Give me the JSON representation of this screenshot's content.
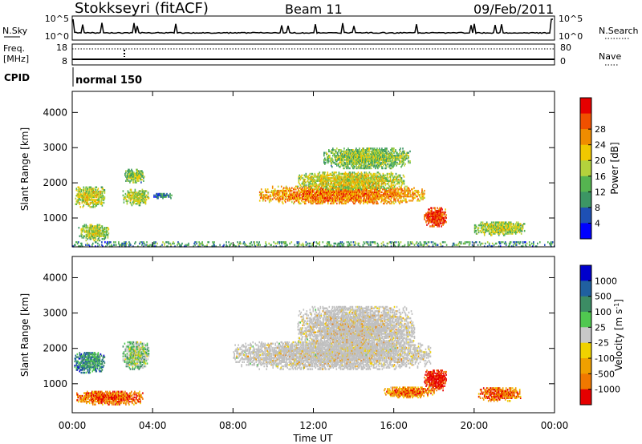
{
  "header": {
    "station": "Stokkseyri (fitACF)",
    "beam": "Beam 11",
    "date": "09/Feb/2011"
  },
  "summary": {
    "nsky_label": "N.Sky",
    "nsky_ticks": [
      "10^5",
      "10^0"
    ],
    "nsearch_label": "N.Search",
    "freq_label": "Freq.",
    "freq_unit": "[MHz]",
    "freq_ticks": [
      18,
      8
    ],
    "nave_label": "Nave",
    "nave_ticks": [
      80,
      0
    ],
    "cpid_label": "CPID",
    "cpid_value": "normal 150"
  },
  "colors": {
    "power": [
      "#0000ff",
      "#1e50b4",
      "#3c9664",
      "#55b450",
      "#b4d23c",
      "#f0c800",
      "#f08c00",
      "#f05000",
      "#e60000"
    ],
    "velocity": [
      "#0000cc",
      "#2060a0",
      "#3c8c64",
      "#50c850",
      "#c8c8c8",
      "#f0d200",
      "#f0a000",
      "#f07800",
      "#e60000"
    ],
    "ground_scatter": "#c0c0c0"
  },
  "chart_data": [
    {
      "type": "heatmap",
      "panel": "power",
      "x_ticks": [
        "00:00",
        "04:00",
        "08:00",
        "12:00",
        "16:00",
        "20:00",
        "00:00"
      ],
      "x_range_hours": [
        0,
        24
      ],
      "ylabel": "Slant Range [km]",
      "y_ticks": [
        1000,
        2000,
        3000,
        4000
      ],
      "y_range_km": [
        180,
        4600
      ],
      "colorbar_label": "Power [dB]",
      "colorbar_ticks": [
        "4",
        "8",
        "12",
        "16",
        "20",
        "24",
        "28"
      ],
      "regions": [
        {
          "t": [
            0.1,
            1.6
          ],
          "r": [
            1300,
            1900
          ],
          "level": 0.4
        },
        {
          "t": [
            0.3,
            1.8
          ],
          "r": [
            350,
            800
          ],
          "level": 0.35
        },
        {
          "t": [
            2.5,
            3.8
          ],
          "r": [
            1350,
            1800
          ],
          "level": 0.35
        },
        {
          "t": [
            2.6,
            3.6
          ],
          "r": [
            2000,
            2400
          ],
          "level": 0.3
        },
        {
          "t": [
            4.0,
            5.0
          ],
          "r": [
            1550,
            1700
          ],
          "level": 0.1
        },
        {
          "t": [
            9.3,
            17.5
          ],
          "r": [
            1400,
            1900
          ],
          "level": 0.6
        },
        {
          "t": [
            11.2,
            16.5
          ],
          "r": [
            1800,
            2300
          ],
          "level": 0.4
        },
        {
          "t": [
            12.5,
            16.8
          ],
          "r": [
            2400,
            3000
          ],
          "level": 0.3
        },
        {
          "t": [
            17.5,
            18.6
          ],
          "r": [
            750,
            1300
          ],
          "level": 0.75
        },
        {
          "t": [
            20.0,
            22.5
          ],
          "r": [
            500,
            900
          ],
          "level": 0.35
        },
        {
          "t": [
            0.0,
            24.0
          ],
          "r": [
            180,
            320
          ],
          "level": 0.2
        }
      ]
    },
    {
      "type": "heatmap",
      "panel": "velocity",
      "x_ticks": [
        "00:00",
        "04:00",
        "08:00",
        "12:00",
        "16:00",
        "20:00",
        "00:00"
      ],
      "x_range_hours": [
        0,
        24
      ],
      "xlabel": "Time UT",
      "ylabel": "Slant Range [km]",
      "y_ticks": [
        1000,
        2000,
        3000,
        4000
      ],
      "y_range_km": [
        180,
        4600
      ],
      "colorbar_label": "Velocity [m s^-1]",
      "colorbar_ticks": [
        "1000",
        "500",
        "100",
        "25",
        "-25",
        "-100",
        "-500",
        "-1000"
      ],
      "regions": [
        {
          "t": [
            0.1,
            1.6
          ],
          "r": [
            1300,
            1900
          ],
          "level": 0.15
        },
        {
          "t": [
            0.2,
            3.5
          ],
          "r": [
            400,
            800
          ],
          "level": 0.7
        },
        {
          "t": [
            2.5,
            3.8
          ],
          "r": [
            1400,
            2200
          ],
          "level": 0.3
        },
        {
          "t": [
            8.0,
            17.8
          ],
          "r": [
            1400,
            2200
          ],
          "level": 0.5
        },
        {
          "t": [
            11.2,
            17.0
          ],
          "r": [
            1800,
            3200
          ],
          "level": 0.5
        },
        {
          "t": [
            17.5,
            18.6
          ],
          "r": [
            800,
            1400
          ],
          "level": 0.85
        },
        {
          "t": [
            15.5,
            18.0
          ],
          "r": [
            600,
            900
          ],
          "level": 0.65
        },
        {
          "t": [
            20.2,
            22.3
          ],
          "r": [
            500,
            900
          ],
          "level": 0.7
        }
      ]
    }
  ]
}
